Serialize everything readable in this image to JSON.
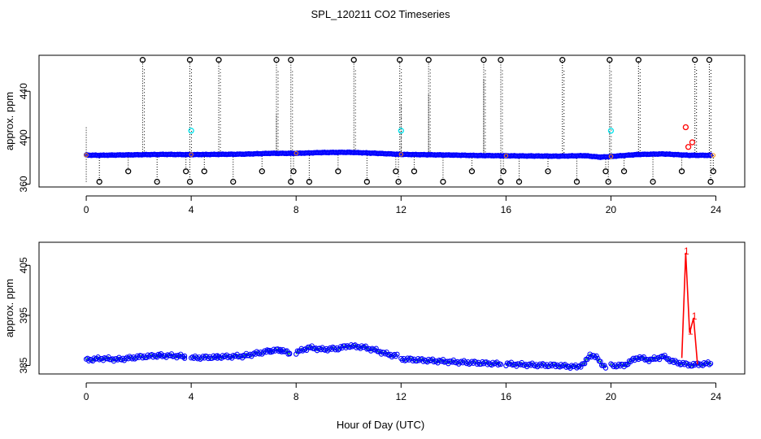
{
  "title": "SPL_120211  CO2 Timeseries",
  "xlabel": "Hour of Day (UTC)",
  "chart_data": [
    {
      "type": "scatter",
      "panel": "top",
      "title": "SPL_120211  CO2 Timeseries",
      "ylabel": "approx. ppm",
      "xlim": [
        -1.8,
        25.1
      ],
      "ylim": [
        357.5,
        471
      ],
      "xticks": [
        0,
        4,
        8,
        12,
        16,
        20,
        24
      ],
      "yticks": [
        360,
        400,
        440
      ],
      "xtick_labels": [
        "0",
        "4",
        "8",
        "12",
        "16",
        "20",
        "24"
      ],
      "ytick_labels": [
        "360",
        "400",
        "440"
      ],
      "grid": false,
      "colors": {
        "main": "#0000ff",
        "outlier": "#000000",
        "cyan": "#00e5ee",
        "red": "#ff0000",
        "orange": "#ff8c00"
      },
      "baseline": [
        [
          0,
          385
        ],
        [
          0.5,
          384.8
        ],
        [
          1,
          385
        ],
        [
          2,
          385.3
        ],
        [
          3,
          385.6
        ],
        [
          4,
          385.4
        ],
        [
          5,
          385.6
        ],
        [
          6,
          385.8
        ],
        [
          7,
          386.5
        ],
        [
          8,
          386.5
        ],
        [
          9,
          387.2
        ],
        [
          10,
          387.4
        ],
        [
          11,
          386.6
        ],
        [
          12,
          385.6
        ],
        [
          13,
          385.3
        ],
        [
          14,
          385
        ],
        [
          15,
          384.6
        ],
        [
          16,
          384.4
        ],
        [
          17,
          384.2
        ],
        [
          18,
          384.1
        ],
        [
          19,
          384.5
        ],
        [
          19.6,
          383.2
        ],
        [
          20,
          383.8
        ],
        [
          21,
          385.5
        ],
        [
          22,
          386
        ],
        [
          23,
          384.8
        ],
        [
          23.8,
          384.8
        ]
      ],
      "high_spikes": [
        2.15,
        3.95,
        5.05,
        7.25,
        7.8,
        10.2,
        11.95,
        13.05,
        15.15,
        15.8,
        18.15,
        19.95,
        21.05,
        23.2,
        23.75
      ],
      "low_spikes": [
        0.5,
        1.6,
        2.7,
        3.8,
        3.95,
        4.5,
        5.6,
        6.7,
        7.8,
        7.9,
        8.5,
        9.6,
        10.7,
        11.8,
        11.9,
        12.5,
        13.6,
        14.7,
        15.8,
        15.9,
        16.5,
        17.6,
        18.7,
        19.8,
        19.9,
        20.5,
        21.6,
        22.7,
        23.8,
        23.9
      ],
      "high_value": 467,
      "low_values": [
        371,
        362
      ],
      "cyan_points": [
        [
          4.0,
          406
        ],
        [
          12.0,
          406
        ],
        [
          20.0,
          406
        ]
      ],
      "red_points": [
        [
          22.85,
          409
        ],
        [
          22.95,
          392
        ],
        [
          23.1,
          396
        ]
      ],
      "dotted_extensions": [
        [
          0,
          362,
          409
        ],
        [
          12.0,
          386,
          430
        ],
        [
          13.05,
          386,
          438
        ],
        [
          15.15,
          386,
          450
        ],
        [
          7.25,
          386,
          420
        ],
        [
          19.95,
          386,
          440
        ]
      ]
    },
    {
      "type": "line",
      "panel": "bottom",
      "ylabel": "approx. ppm",
      "xlim": [
        -1.8,
        25.1
      ],
      "ylim": [
        383.3,
        409.6
      ],
      "xticks": [
        0,
        4,
        8,
        12,
        16,
        20,
        24
      ],
      "yticks": [
        385,
        395,
        405
      ],
      "xtick_labels": [
        "0",
        "4",
        "8",
        "12",
        "16",
        "20",
        "24"
      ],
      "ytick_labels": [
        "385",
        "395",
        "405"
      ],
      "grid": false,
      "colors": {
        "points": "#0000ff",
        "line": "#00c000",
        "spike": "#ff0000"
      },
      "segments": [
        [
          [
            0,
            386.1
          ],
          [
            0.6,
            386.4
          ],
          [
            1.2,
            386.2
          ],
          [
            2,
            386.7
          ],
          [
            2.8,
            387
          ],
          [
            3.5,
            386.9
          ],
          [
            3.75,
            386.8
          ]
        ],
        [
          [
            4.0,
            386.5
          ],
          [
            5,
            386.7
          ],
          [
            6,
            386.9
          ],
          [
            7,
            387.9
          ],
          [
            7.4,
            388.1
          ],
          [
            7.75,
            387.4
          ]
        ],
        [
          [
            8.0,
            387.6
          ],
          [
            8.5,
            388.6
          ],
          [
            9,
            388.2
          ],
          [
            9.6,
            388.4
          ],
          [
            10,
            388.9
          ],
          [
            10.5,
            388.7
          ],
          [
            11,
            388.1
          ],
          [
            11.5,
            387.2
          ],
          [
            11.85,
            386.9
          ]
        ],
        [
          [
            12.0,
            386.3
          ],
          [
            13,
            386
          ],
          [
            14,
            385.7
          ],
          [
            15,
            385.5
          ],
          [
            15.8,
            385.3
          ]
        ],
        [
          [
            16.0,
            385.3
          ],
          [
            17,
            385.1
          ],
          [
            18,
            385
          ],
          [
            18.7,
            384.7
          ],
          [
            19.0,
            385.4
          ],
          [
            19.2,
            387.2
          ],
          [
            19.5,
            386.4
          ],
          [
            19.7,
            385
          ],
          [
            19.8,
            384.6
          ]
        ],
        [
          [
            20.0,
            385
          ],
          [
            20.5,
            385
          ],
          [
            21,
            386.6
          ],
          [
            21.5,
            386.1
          ],
          [
            22,
            386.8
          ],
          [
            22.4,
            385.7
          ],
          [
            23,
            385.1
          ],
          [
            23.8,
            385.4
          ]
        ]
      ],
      "spike_line": [
        [
          22.7,
          386.5
        ],
        [
          22.85,
          407.5
        ],
        [
          23.0,
          391.5
        ],
        [
          23.15,
          394.5
        ],
        [
          23.3,
          385.2
        ]
      ],
      "spike_labels": [
        {
          "x": 22.85,
          "y": 407.5,
          "text": "1"
        },
        {
          "x": 23.15,
          "y": 394.5,
          "text": "1"
        },
        {
          "x": 23.0,
          "y": 391.5,
          "text": "1"
        }
      ]
    }
  ]
}
